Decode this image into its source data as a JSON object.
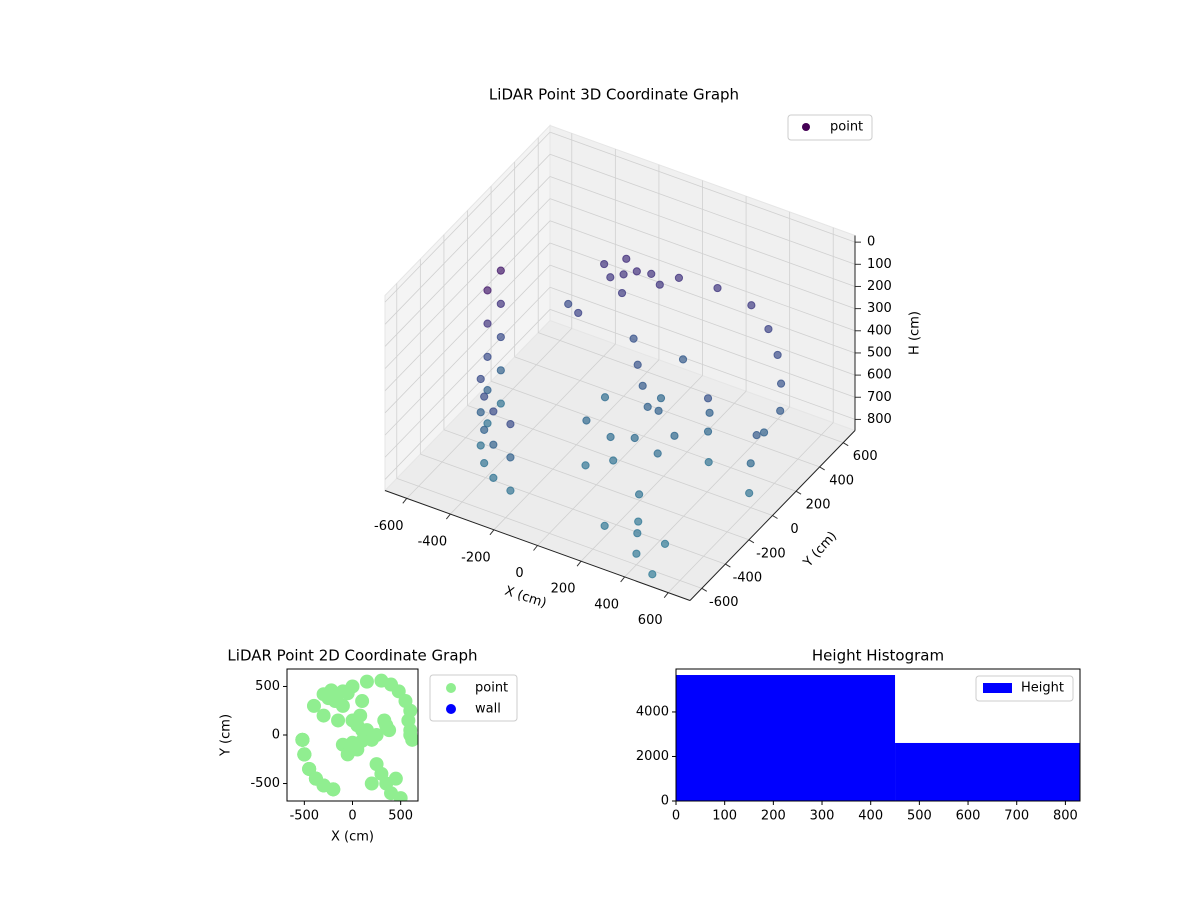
{
  "chart_data": [
    {
      "type": "scatter3d",
      "title": "LiDAR Point 3D Coordinate Graph",
      "xlabel": "X (cm)",
      "ylabel": "Y (cm)",
      "zlabel": "H (cm)",
      "xlim": [
        -700,
        700
      ],
      "ylim": [
        -700,
        700
      ],
      "zlim": [
        -30,
        850
      ],
      "z_inverted": true,
      "xticks": [
        -600,
        -400,
        -200,
        0,
        200,
        400,
        600
      ],
      "yticks": [
        -600,
        -400,
        -200,
        0,
        200,
        400,
        600
      ],
      "zticks": [
        0,
        100,
        200,
        300,
        400,
        500,
        600,
        700,
        800
      ],
      "grid": true,
      "legend": "upper right",
      "cmap": [
        "#440154",
        "#482878",
        "#3e4989",
        "#31688e",
        "#35809a"
      ],
      "clim": [
        0,
        850
      ],
      "series": [
        {
          "name": "point",
          "color": "#440154",
          "x": [
            -520,
            -520,
            -520,
            -520,
            -520,
            -500,
            -500,
            -500,
            -500,
            -500,
            -450,
            -450,
            -450,
            -380,
            -380,
            -380,
            -300,
            -300,
            -300,
            -200,
            -200,
            -200,
            -100,
            0,
            100,
            200,
            250,
            150,
            50,
            -50,
            -200,
            -150,
            -250,
            -100,
            -180,
            -50,
            -300,
            -220,
            0,
            150,
            300,
            400,
            480,
            550,
            600,
            580,
            350,
            350,
            380,
            330,
            600,
            620,
            600,
            50,
            100,
            0,
            80,
            300,
            350,
            400,
            250,
            450,
            200,
            500,
            -300,
            -100,
            -400,
            100,
            -150
          ],
          "y": [
            -50,
            -50,
            -50,
            -50,
            -50,
            -200,
            -200,
            -200,
            -200,
            -200,
            -350,
            -350,
            -350,
            -450,
            -450,
            -450,
            -520,
            -520,
            -520,
            -560,
            -560,
            -560,
            -100,
            -80,
            -60,
            -50,
            0,
            50,
            -150,
            -200,
            400,
            420,
            380,
            450,
            350,
            430,
            420,
            460,
            500,
            550,
            560,
            520,
            450,
            350,
            250,
            150,
            100,
            100,
            50,
            150,
            0,
            -50,
            50,
            100,
            50,
            150,
            200,
            -400,
            -500,
            -600,
            -300,
            -450,
            -500,
            -650,
            200,
            300,
            300,
            350,
            150
          ],
          "z": [
            150,
            300,
            450,
            600,
            750,
            150,
            300,
            450,
            600,
            750,
            450,
            600,
            750,
            450,
            600,
            750,
            450,
            600,
            750,
            450,
            600,
            750,
            650,
            700,
            680,
            720,
            650,
            600,
            750,
            780,
            300,
            280,
            320,
            290,
            350,
            310,
            300,
            270,
            300,
            320,
            350,
            400,
            450,
            500,
            550,
            600,
            500,
            650,
            750,
            600,
            650,
            750,
            550,
            550,
            600,
            500,
            650,
            800,
            780,
            800,
            750,
            820,
            800,
            830,
            400,
            500,
            450,
            550,
            700
          ]
        }
      ]
    },
    {
      "type": "scatter",
      "title": "LiDAR Point 2D Coordinate Graph",
      "xlabel": "X (cm)",
      "ylabel": "Y (cm)",
      "xlim": [
        -680,
        680
      ],
      "ylim": [
        -680,
        680
      ],
      "xticks": [
        -500,
        0,
        500
      ],
      "yticks": [
        -500,
        0,
        500
      ],
      "legend": "outside upper right",
      "series": [
        {
          "name": "point",
          "color": "#90ee90",
          "x": [
            -520,
            -520,
            -520,
            -520,
            -520,
            -500,
            -500,
            -500,
            -500,
            -500,
            -450,
            -450,
            -450,
            -380,
            -380,
            -380,
            -300,
            -300,
            -300,
            -200,
            -200,
            -200,
            -100,
            0,
            100,
            200,
            250,
            150,
            50,
            -50,
            -200,
            -150,
            -250,
            -100,
            -180,
            -50,
            -300,
            -220,
            0,
            150,
            300,
            400,
            480,
            550,
            600,
            580,
            350,
            350,
            380,
            330,
            600,
            620,
            600,
            50,
            100,
            0,
            80,
            300,
            350,
            400,
            250,
            450,
            200,
            500,
            -300,
            -100,
            -400,
            100,
            -150
          ],
          "values": [
            -50,
            -50,
            -50,
            -50,
            -50,
            -200,
            -200,
            -200,
            -200,
            -200,
            -350,
            -350,
            -350,
            -450,
            -450,
            -450,
            -520,
            -520,
            -520,
            -560,
            -560,
            -560,
            -100,
            -80,
            -60,
            -50,
            0,
            50,
            -150,
            -200,
            400,
            420,
            380,
            450,
            350,
            430,
            420,
            460,
            500,
            550,
            560,
            520,
            450,
            350,
            250,
            150,
            100,
            100,
            50,
            150,
            0,
            -50,
            50,
            100,
            50,
            150,
            200,
            -400,
            -500,
            -600,
            -300,
            -450,
            -500,
            -650,
            200,
            300,
            300,
            350,
            150
          ]
        },
        {
          "name": "wall",
          "color": "#0000ff",
          "x": [],
          "values": []
        }
      ]
    },
    {
      "type": "histogram",
      "title": "Height Histogram",
      "xlim": [
        0,
        830
      ],
      "ylim": [
        0,
        5930
      ],
      "xticks": [
        0,
        100,
        200,
        300,
        400,
        500,
        600,
        700,
        800
      ],
      "yticks": [
        0,
        2000,
        4000
      ],
      "legend": "upper right",
      "series": [
        {
          "name": "Height",
          "color": "#0000ff",
          "bins": [
            0,
            450,
            830
          ],
          "values": [
            5660,
            2607
          ]
        }
      ]
    }
  ]
}
